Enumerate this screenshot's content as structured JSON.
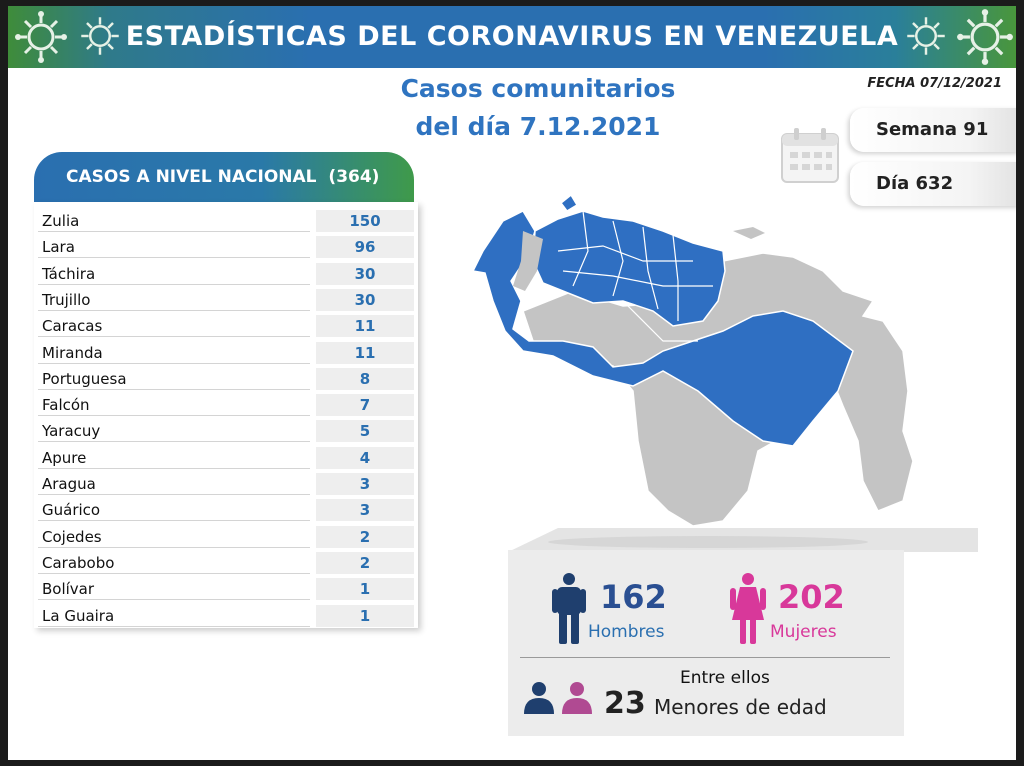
{
  "header": {
    "title": "ESTADÍSTICAS DEL CORONAVIRUS EN VENEZUELA",
    "subtitle_line1": "Casos comunitarios",
    "subtitle_line2": "del día 7.12.2021",
    "fecha": "FECHA 07/12/2021"
  },
  "badges": {
    "semana": "Semana 91",
    "dia": "Día 632"
  },
  "national": {
    "label": "CASOS A NIVEL NACIONAL",
    "total": "(364)",
    "rows": [
      {
        "state": "Zulia",
        "cases": "150"
      },
      {
        "state": "Lara",
        "cases": "96"
      },
      {
        "state": "Táchira",
        "cases": "30"
      },
      {
        "state": "Trujillo",
        "cases": "30"
      },
      {
        "state": "Caracas",
        "cases": "11"
      },
      {
        "state": "Miranda",
        "cases": "11"
      },
      {
        "state": "Portuguesa",
        "cases": "8"
      },
      {
        "state": "Falcón",
        "cases": "7"
      },
      {
        "state": "Yaracuy",
        "cases": "5"
      },
      {
        "state": "Apure",
        "cases": "4"
      },
      {
        "state": "Aragua",
        "cases": "3"
      },
      {
        "state": "Guárico",
        "cases": "3"
      },
      {
        "state": "Cojedes",
        "cases": "2"
      },
      {
        "state": "Carabobo",
        "cases": "2"
      },
      {
        "state": "Bolívar",
        "cases": "1"
      },
      {
        "state": "La Guaira",
        "cases": "1"
      }
    ]
  },
  "gender": {
    "men_count": "162",
    "men_label": "Hombres",
    "women_count": "202",
    "women_label": "Mujeres",
    "among_label": "Entre ellos",
    "minors_count": "23",
    "minors_label": "Menores de edad"
  },
  "colors": {
    "primary_blue": "#2a6fb0",
    "accent_green": "#3f9a4a",
    "women_pink": "#d8389a",
    "men_navy": "#1f3f6e",
    "map_gray": "#c4c4c4"
  },
  "icons": [
    "virus-icon",
    "calendar-icon",
    "man-icon",
    "woman-icon",
    "child-icon"
  ]
}
